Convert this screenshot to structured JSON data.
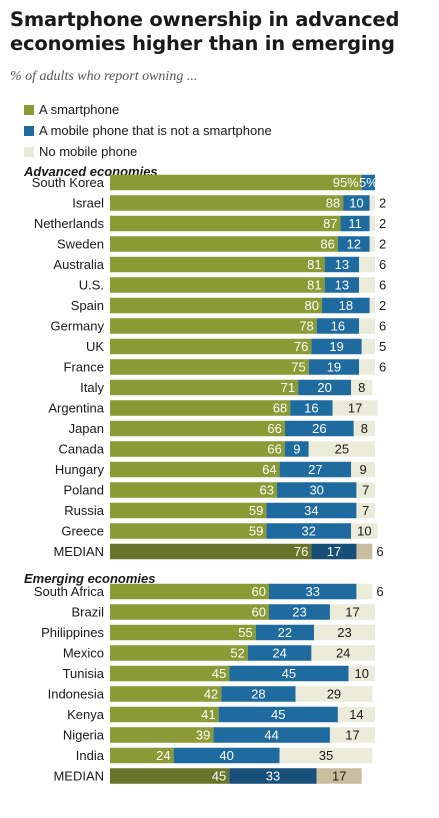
{
  "title": "Smartphone ownership in advanced economies higher than in emerging",
  "subtitle": "% of adults who report owning ...",
  "colors": {
    "smartphone": "#8a9a35",
    "mobile": "#1f6ba0",
    "none": "#ebebda",
    "median_smartphone": "#67742a",
    "median_mobile": "#174f78",
    "median_none": "#c9bda0"
  },
  "legend": [
    {
      "label": "A smartphone",
      "color": "#8a9a35"
    },
    {
      "label": "A mobile phone that is not a smartphone",
      "color": "#1f6ba0"
    },
    {
      "label": "No mobile phone",
      "color": "#ebebda"
    }
  ],
  "chart_data": {
    "type": "bar",
    "stacked": true,
    "orientation": "horizontal",
    "series": [
      {
        "name": "A smartphone"
      },
      {
        "name": "A mobile phone that is not a smartphone"
      },
      {
        "name": "No mobile phone"
      }
    ],
    "groups": [
      {
        "label": "Advanced economies",
        "rows": [
          {
            "name": "South Korea",
            "values": [
              95,
              5,
              0
            ],
            "labels": [
              "95%",
              "5%",
              ""
            ]
          },
          {
            "name": "Israel",
            "values": [
              88,
              10,
              2
            ],
            "labels": [
              "88",
              "10",
              "2"
            ]
          },
          {
            "name": "Netherlands",
            "values": [
              87,
              11,
              2
            ],
            "labels": [
              "87",
              "11",
              "2"
            ]
          },
          {
            "name": "Sweden",
            "values": [
              86,
              12,
              2
            ],
            "labels": [
              "86",
              "12",
              "2"
            ]
          },
          {
            "name": "Australia",
            "values": [
              81,
              13,
              6
            ],
            "labels": [
              "81",
              "13",
              "6"
            ]
          },
          {
            "name": "U.S.",
            "values": [
              81,
              13,
              6
            ],
            "labels": [
              "81",
              "13",
              "6"
            ]
          },
          {
            "name": "Spain",
            "values": [
              80,
              18,
              2
            ],
            "labels": [
              "80",
              "18",
              "2"
            ]
          },
          {
            "name": "Germany",
            "values": [
              78,
              16,
              6
            ],
            "labels": [
              "78",
              "16",
              "6"
            ]
          },
          {
            "name": "UK",
            "values": [
              76,
              19,
              5
            ],
            "labels": [
              "76",
              "19",
              "5"
            ]
          },
          {
            "name": "France",
            "values": [
              75,
              19,
              6
            ],
            "labels": [
              "75",
              "19",
              "6"
            ]
          },
          {
            "name": "Italy",
            "values": [
              71,
              20,
              8
            ],
            "labels": [
              "71",
              "20",
              "8"
            ]
          },
          {
            "name": "Argentina",
            "values": [
              68,
              16,
              17
            ],
            "labels": [
              "68",
              "16",
              "17"
            ]
          },
          {
            "name": "Japan",
            "values": [
              66,
              26,
              8
            ],
            "labels": [
              "66",
              "26",
              "8"
            ]
          },
          {
            "name": "Canada",
            "values": [
              66,
              9,
              25
            ],
            "labels": [
              "66",
              "9",
              "25"
            ]
          },
          {
            "name": "Hungary",
            "values": [
              64,
              27,
              9
            ],
            "labels": [
              "64",
              "27",
              "9"
            ]
          },
          {
            "name": "Poland",
            "values": [
              63,
              30,
              7
            ],
            "labels": [
              "63",
              "30",
              "7"
            ]
          },
          {
            "name": "Russia",
            "values": [
              59,
              34,
              7
            ],
            "labels": [
              "59",
              "34",
              "7"
            ]
          },
          {
            "name": "Greece",
            "values": [
              59,
              32,
              10
            ],
            "labels": [
              "59",
              "32",
              "10"
            ]
          },
          {
            "name": "MEDIAN",
            "values": [
              76,
              17,
              6
            ],
            "labels": [
              "76",
              "17",
              "6"
            ],
            "median": true
          }
        ]
      },
      {
        "label": "Emerging economies",
        "rows": [
          {
            "name": "South Africa",
            "values": [
              60,
              33,
              6
            ],
            "labels": [
              "60",
              "33",
              "6"
            ]
          },
          {
            "name": "Brazil",
            "values": [
              60,
              23,
              17
            ],
            "labels": [
              "60",
              "23",
              "17"
            ]
          },
          {
            "name": "Philippines",
            "values": [
              55,
              22,
              23
            ],
            "labels": [
              "55",
              "22",
              "23"
            ]
          },
          {
            "name": "Mexico",
            "values": [
              52,
              24,
              24
            ],
            "labels": [
              "52",
              "24",
              "24"
            ]
          },
          {
            "name": "Tunisia",
            "values": [
              45,
              45,
              10
            ],
            "labels": [
              "45",
              "45",
              "10"
            ]
          },
          {
            "name": "Indonesia",
            "values": [
              42,
              28,
              29
            ],
            "labels": [
              "42",
              "28",
              "29"
            ]
          },
          {
            "name": "Kenya",
            "values": [
              41,
              45,
              14
            ],
            "labels": [
              "41",
              "45",
              "14"
            ]
          },
          {
            "name": "Nigeria",
            "values": [
              39,
              44,
              17
            ],
            "labels": [
              "39",
              "44",
              "17"
            ]
          },
          {
            "name": "India",
            "values": [
              24,
              40,
              35
            ],
            "labels": [
              "24",
              "40",
              "35"
            ]
          },
          {
            "name": "MEDIAN",
            "values": [
              45,
              33,
              17
            ],
            "labels": [
              "45",
              "33",
              "17"
            ],
            "median": true
          }
        ]
      }
    ]
  }
}
